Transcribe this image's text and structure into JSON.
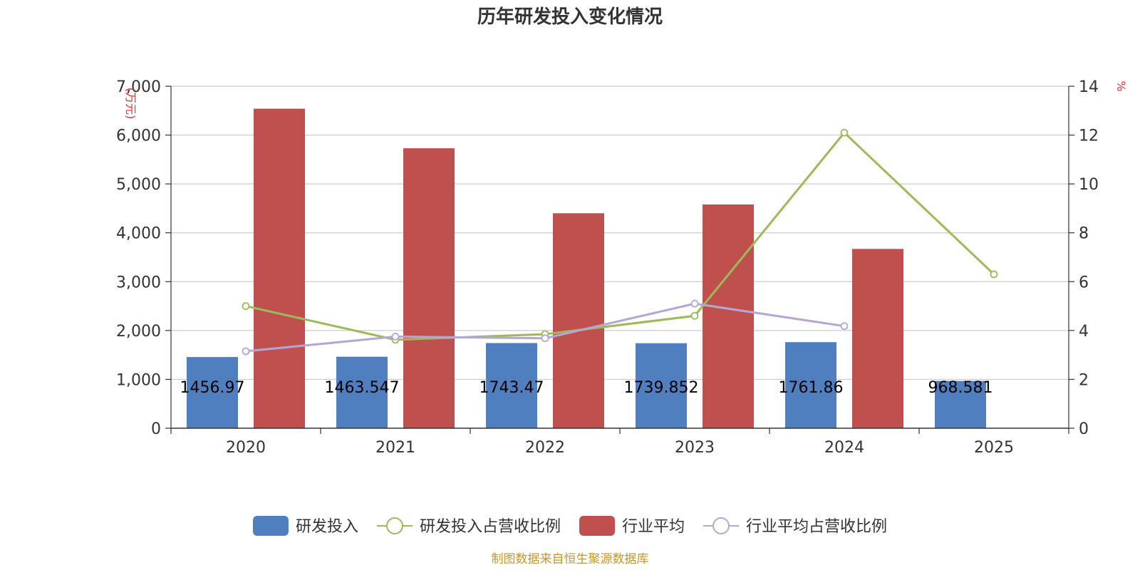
{
  "chart_data": {
    "type": "bar",
    "title": "历年研发投入变化情况",
    "source": "制图数据来自恒生聚源数据库",
    "categories": [
      "2020",
      "2021",
      "2022",
      "2023",
      "2024",
      "2025"
    ],
    "y_left": {
      "unit": "(万元)",
      "range": [
        0,
        7000
      ],
      "ticks": [
        "0",
        "1,000",
        "2,000",
        "3,000",
        "4,000",
        "5,000",
        "6,000",
        "7,000"
      ]
    },
    "y_right": {
      "unit": "%",
      "range": [
        0,
        14
      ],
      "ticks": [
        "0",
        "2",
        "4",
        "6",
        "8",
        "10",
        "12",
        "14"
      ]
    },
    "grid": true,
    "legend_position": "bottom",
    "series": [
      {
        "name": "研发投入",
        "type": "bar",
        "axis": "left",
        "color": "#4f7fbf",
        "values": [
          1456.97,
          1463.547,
          1743.47,
          1739.852,
          1761.86,
          968.581
        ],
        "labels": [
          "1456.97",
          "1463.547",
          "1743.47",
          "1739.852",
          "1761.86",
          "968.581"
        ]
      },
      {
        "name": "研发投入占营收比例",
        "type": "line",
        "axis": "right",
        "color": "#9bbb59",
        "values": [
          5.0,
          3.62,
          3.85,
          4.6,
          12.1,
          6.3
        ]
      },
      {
        "name": "行业平均",
        "type": "bar",
        "axis": "left",
        "color": "#c0504d",
        "values": [
          6540,
          5730,
          4400,
          4580,
          3670,
          null
        ]
      },
      {
        "name": "行业平均占营收比例",
        "type": "line",
        "axis": "right",
        "color": "#b4a7d6",
        "values": [
          3.15,
          3.75,
          3.68,
          5.1,
          4.18,
          null
        ]
      }
    ]
  }
}
